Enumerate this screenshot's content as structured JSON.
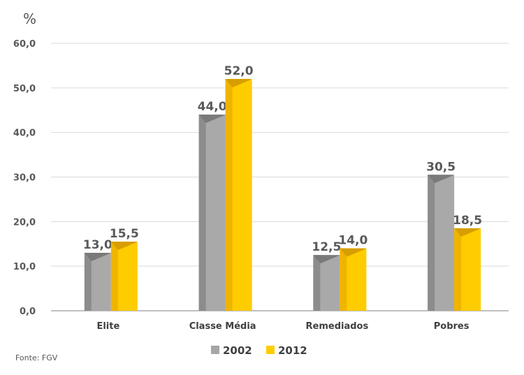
{
  "chart_data": {
    "type": "bar",
    "title": "",
    "xlabel": "",
    "ylabel": "%",
    "ylim": [
      0,
      60
    ],
    "yticks": [
      "0,0",
      "10,0",
      "20,0",
      "30,0",
      "40,0",
      "50,0",
      "60,0"
    ],
    "categories": [
      "Elite",
      "Classe Média",
      "Remediados",
      "Pobres"
    ],
    "series": [
      {
        "name": "2002",
        "values": [
          13.0,
          44.0,
          12.5,
          30.5
        ],
        "labels": [
          "13,0",
          "44,0",
          "12,5",
          "30,5"
        ]
      },
      {
        "name": "2012",
        "values": [
          15.5,
          52.0,
          14.0,
          18.5
        ],
        "labels": [
          "15,5",
          "52,0",
          "14,0",
          "18,5"
        ]
      }
    ],
    "colors": [
      "#a6a6a6",
      "#ffcc00"
    ],
    "grid": true,
    "legend": "bottom"
  },
  "source": "Fonte: FGV"
}
